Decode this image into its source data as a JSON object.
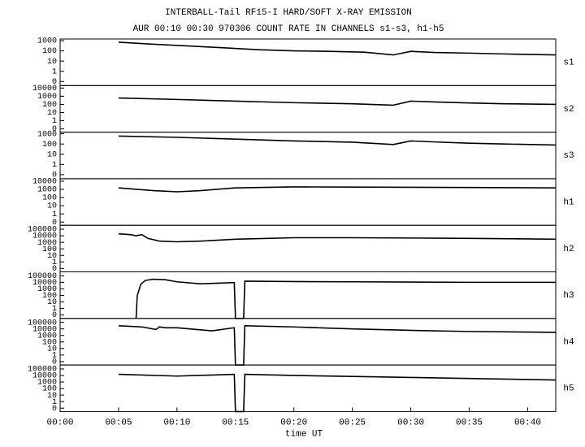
{
  "chart_data": [
    {
      "type": "line",
      "title": "INTERBALL-Tail RF15-I HARD/SOFT X-RAY EMISSION",
      "subtitle": "AUR 00:10 00:30 970306  COUNT RATE IN CHANNELS s1-s3, h1-h5",
      "label": "s1",
      "log": true,
      "color": "#000000",
      "xlim": [
        0,
        42.4
      ],
      "ylim": [
        0.04,
        1450
      ],
      "yticks": [
        {
          "value": 0.1,
          "label": "0"
        },
        1,
        10,
        100,
        1000
      ],
      "x": [
        5,
        8,
        11,
        14,
        17,
        20,
        23,
        26,
        28.5,
        30,
        32,
        35,
        38,
        40,
        42.4
      ],
      "values": [
        700,
        450,
        300,
        200,
        130,
        100,
        90,
        75,
        40,
        90,
        70,
        60,
        50,
        45,
        40
      ]
    },
    {
      "type": "line",
      "label": "s2",
      "log": true,
      "color": "#000000",
      "xlim": [
        0,
        42.4
      ],
      "ylim": [
        0.04,
        20000
      ],
      "yticks": [
        {
          "value": 0.1,
          "label": "0"
        },
        1,
        10,
        100,
        1000,
        10000
      ],
      "x": [
        5,
        10,
        15,
        20,
        25,
        28.5,
        30,
        32,
        35,
        38,
        42.4
      ],
      "values": [
        600,
        400,
        250,
        160,
        120,
        80,
        250,
        200,
        150,
        120,
        100
      ]
    },
    {
      "type": "line",
      "label": "s3",
      "log": true,
      "color": "#000000",
      "xlim": [
        0,
        42.4
      ],
      "ylim": [
        0.04,
        1450
      ],
      "yticks": [
        {
          "value": 0.1,
          "label": "0"
        },
        1,
        10,
        100,
        1000
      ],
      "x": [
        5,
        10,
        15,
        20,
        25,
        28.5,
        30,
        32,
        35,
        38,
        42.4
      ],
      "values": [
        600,
        450,
        300,
        200,
        150,
        90,
        200,
        160,
        120,
        100,
        80
      ]
    },
    {
      "type": "line",
      "label": "h1",
      "log": true,
      "color": "#000000",
      "xlim": [
        0,
        42.4
      ],
      "ylim": [
        0.04,
        20000
      ],
      "yticks": [
        {
          "value": 0.1,
          "label": "0"
        },
        1,
        10,
        100,
        1000,
        10000
      ],
      "x": [
        5,
        8,
        10,
        12,
        15,
        20,
        25,
        30,
        35,
        42.4
      ],
      "values": [
        1500,
        700,
        500,
        700,
        1500,
        2000,
        1900,
        1800,
        1700,
        1500
      ]
    },
    {
      "type": "line",
      "label": "h2",
      "log": true,
      "color": "#000000",
      "xlim": [
        0,
        42.4
      ],
      "ylim": [
        0.03,
        400000
      ],
      "yticks": [
        {
          "value": 0.1,
          "label": "0"
        },
        1,
        10,
        100,
        1000,
        10000,
        100000
      ],
      "x": [
        5,
        6,
        6.5,
        7,
        7.5,
        8.5,
        10,
        12,
        15,
        20,
        25,
        30,
        35,
        42.4
      ],
      "values": [
        20000,
        15000,
        10000,
        15000,
        4000,
        1500,
        1200,
        1500,
        3000,
        5000,
        5000,
        4500,
        4000,
        3000
      ]
    },
    {
      "type": "line",
      "label": "h3",
      "log": true,
      "color": "#000000",
      "xlim": [
        0,
        42.4
      ],
      "ylim": [
        0.03,
        400000
      ],
      "yticks": [
        {
          "value": 0.1,
          "label": "0"
        },
        1,
        10,
        100,
        1000,
        10000,
        100000
      ],
      "x": [
        6.5,
        6.6,
        6.9,
        7.3,
        8,
        9,
        10,
        12,
        14.9,
        15,
        15.7,
        15.8,
        20,
        25,
        30,
        35,
        42.4
      ],
      "values": [
        0.03,
        100,
        5000,
        20000,
        30000,
        25000,
        12000,
        6000,
        9000,
        0.03,
        0.03,
        15000,
        13000,
        12000,
        11000,
        10000,
        10000
      ]
    },
    {
      "type": "line",
      "label": "h4",
      "log": true,
      "color": "#000000",
      "xlim": [
        0,
        42.4
      ],
      "ylim": [
        0.03,
        400000
      ],
      "yticks": [
        {
          "value": 0.1,
          "label": "0"
        },
        1,
        10,
        100,
        1000,
        10000,
        100000
      ],
      "x": [
        5,
        7,
        8.2,
        8.5,
        9,
        10,
        13,
        14.9,
        15,
        15.7,
        15.8,
        20,
        25,
        30,
        35,
        42.4
      ],
      "values": [
        30000,
        20000,
        8000,
        20000,
        15000,
        15000,
        5000,
        15000,
        0.03,
        0.03,
        30000,
        20000,
        10000,
        6000,
        4000,
        3000
      ]
    },
    {
      "type": "line",
      "label": "h5",
      "log": true,
      "color": "#000000",
      "xlim": [
        0,
        42.4
      ],
      "ylim": [
        0.03,
        400000
      ],
      "yticks": [
        {
          "value": 0.1,
          "label": "0"
        },
        1,
        10,
        100,
        1000,
        10000,
        100000
      ],
      "x": [
        5,
        10,
        14.9,
        15,
        15.7,
        15.8,
        20,
        25,
        30,
        35,
        42.4
      ],
      "values": [
        15000,
        8000,
        15000,
        0.03,
        0.03,
        15000,
        10000,
        7000,
        5000,
        3500,
        2000
      ],
      "xlabel": "time UT",
      "xticks": [
        {
          "value": 0,
          "label": "00:00"
        },
        {
          "value": 5,
          "label": "00:05"
        },
        {
          "value": 10,
          "label": "00:10"
        },
        {
          "value": 15,
          "label": "00:15"
        },
        {
          "value": 20,
          "label": "00:20"
        },
        {
          "value": 25,
          "label": "00:25"
        },
        {
          "value": 30,
          "label": "00:30"
        },
        {
          "value": 35,
          "label": "00:35"
        },
        {
          "value": 40,
          "label": "00:40"
        }
      ]
    }
  ]
}
